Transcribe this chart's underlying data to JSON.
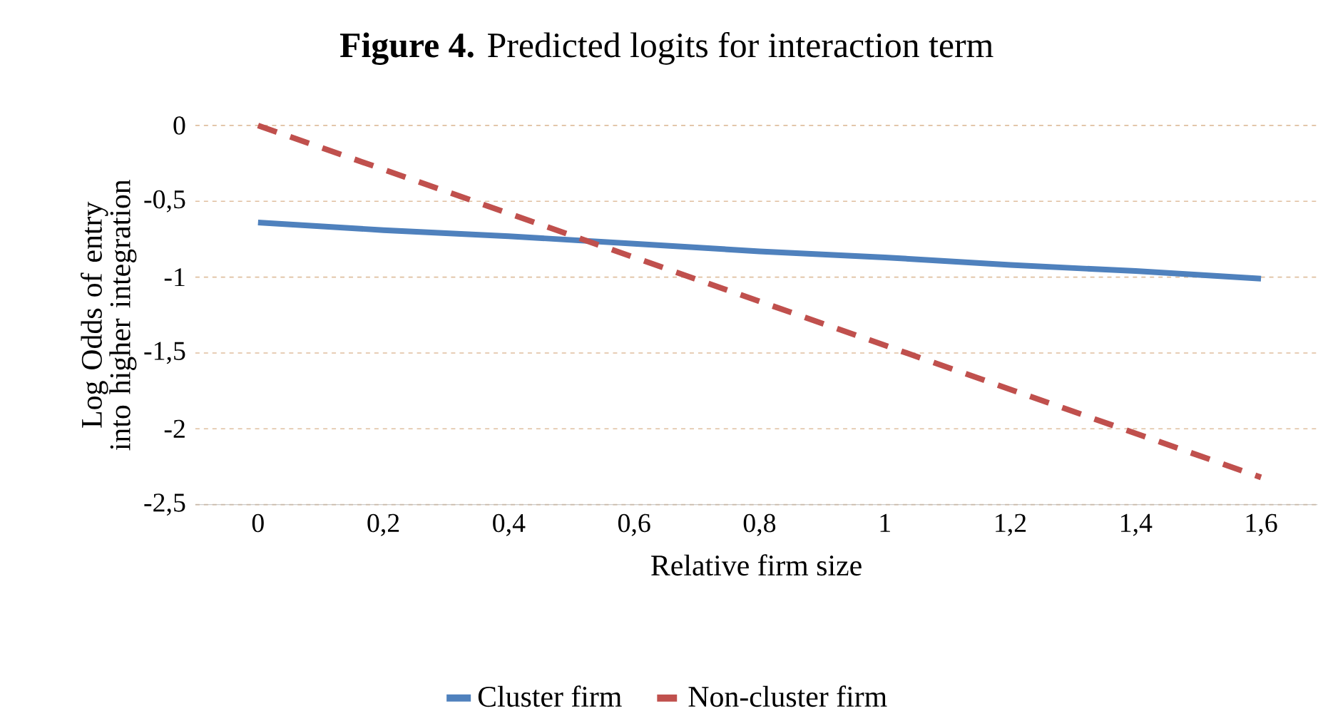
{
  "chart_data": {
    "type": "line",
    "title": "**Figure 4.** Predicted logits for interaction term",
    "xlabel": "Relative firm size",
    "ylabel": "Log Odds of entry into higher integration",
    "categories": [
      "0",
      "0,2",
      "0,4",
      "0,6",
      "0,8",
      "1",
      "1,2",
      "1,4",
      "1,6"
    ],
    "series": [
      {
        "name": "Cluster firm",
        "color": "#4f81bd",
        "values": [
          -0.64,
          -0.69,
          -0.73,
          -0.78,
          -0.83,
          -0.87,
          -0.92,
          -0.96,
          -1.01
        ],
        "line_style": "solid"
      },
      {
        "name": "Non-cluster firm",
        "color": "#c0504d",
        "values": [
          0,
          -0.29,
          -0.58,
          -0.87,
          -1.16,
          -1.45,
          -1.74,
          -2.03,
          -2.32
        ],
        "line_style": "dashed"
      }
    ],
    "ylim": [
      -2.5,
      0
    ],
    "yticks": [
      0,
      {
        "value": -0.5,
        "label": "-0,5"
      },
      -1,
      {
        "value": -1.5,
        "label": "-1,5"
      },
      -2,
      {
        "value": -2.5,
        "label": "-2,5"
      }
    ],
    "grid": "y",
    "legend": "bottom",
    "marker": "none"
  }
}
